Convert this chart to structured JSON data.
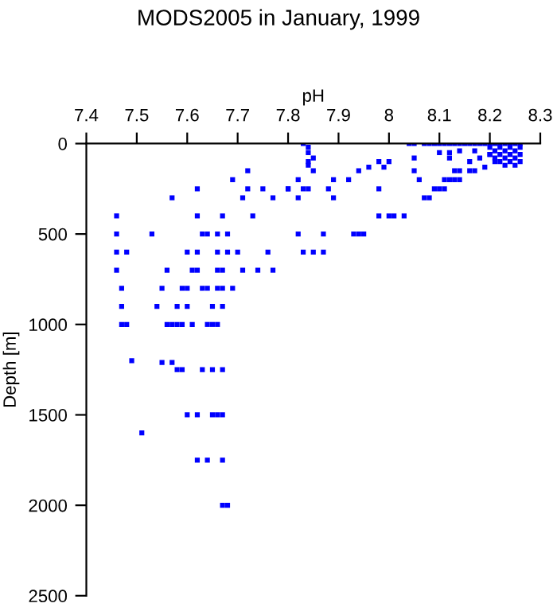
{
  "chart_data": {
    "type": "scatter",
    "title": "MODS2005 in January, 1999",
    "xlabel": "pH",
    "ylabel": "Depth [m]",
    "xlim": [
      7.4,
      8.3
    ],
    "xticks": [
      7.4,
      7.5,
      7.6,
      7.7,
      7.8,
      7.9,
      {
        "value": 8.0,
        "label": "8"
      },
      8.1,
      8.2,
      8.3
    ],
    "ylim": [
      2500,
      0
    ],
    "yticks": [
      0,
      500,
      1000,
      1500,
      2000,
      2500
    ],
    "grid": false,
    "marker": "square",
    "legend": false,
    "series": [
      {
        "color": "#0000ff",
        "x": [
          7.46,
          7.46,
          7.46,
          7.48,
          7.46,
          7.47,
          7.47,
          7.47,
          7.48,
          7.49,
          7.55,
          7.57,
          7.57,
          7.62,
          7.53,
          7.62,
          7.63,
          7.64,
          7.66,
          7.68,
          7.67,
          7.69,
          7.72,
          7.72,
          7.75,
          7.77,
          7.71,
          7.73,
          7.8,
          7.82,
          7.82,
          7.82,
          7.83,
          7.85,
          7.6,
          7.62,
          7.66,
          7.68,
          7.7,
          7.76,
          7.56,
          7.61,
          7.62,
          7.66,
          7.67,
          7.71,
          7.74,
          7.77,
          7.55,
          7.59,
          7.6,
          7.63,
          7.64,
          7.66,
          7.67,
          7.69,
          7.54,
          7.58,
          7.6,
          7.65,
          7.67,
          7.56,
          7.57,
          7.58,
          7.59,
          7.61,
          7.64,
          7.65,
          7.66,
          7.58,
          7.59,
          7.63,
          7.65,
          7.67,
          7.51,
          7.6,
          7.62,
          7.65,
          7.66,
          7.67,
          7.62,
          7.64,
          7.67,
          7.67,
          7.68,
          7.83,
          7.84,
          7.84,
          7.85,
          7.84,
          7.84,
          7.85,
          7.8,
          7.83,
          7.84,
          7.88,
          7.89,
          7.89,
          7.87,
          7.87,
          7.92,
          7.93,
          7.94,
          7.95,
          7.94,
          7.96,
          7.98,
          8.0,
          7.99,
          7.98,
          7.98,
          8.0,
          8.01,
          8.03,
          8.05,
          8.05,
          8.06,
          8.07,
          8.08,
          8.09,
          8.1,
          8.11,
          8.11,
          8.12,
          8.13,
          8.14,
          8.1,
          8.12,
          8.12,
          8.14,
          8.13,
          8.14,
          8.16,
          8.16,
          8.17,
          8.17,
          8.18,
          8.19,
          8.2,
          8.21,
          8.04,
          8.05,
          8.07,
          8.08,
          8.09,
          8.1,
          8.11,
          8.12,
          8.13,
          8.14,
          8.15,
          8.16,
          8.17,
          8.18,
          8.19,
          8.2,
          8.21,
          8.22,
          8.23,
          8.24,
          8.25,
          8.26,
          8.2,
          8.22,
          8.24,
          8.26,
          8.21,
          8.23,
          8.25,
          8.2,
          8.22,
          8.24,
          8.26,
          8.21,
          8.23,
          8.25,
          8.22,
          8.24,
          8.26,
          8.23,
          8.25
        ],
        "values": [
          400,
          500,
          600,
          600,
          700,
          800,
          900,
          1000,
          1000,
          1200,
          1210,
          1210,
          300,
          250,
          500,
          400,
          500,
          500,
          500,
          500,
          400,
          200,
          150,
          250,
          250,
          300,
          300,
          400,
          250,
          200,
          300,
          500,
          600,
          600,
          600,
          600,
          600,
          600,
          600,
          600,
          700,
          700,
          700,
          700,
          700,
          700,
          700,
          700,
          800,
          800,
          800,
          800,
          800,
          800,
          800,
          800,
          900,
          900,
          900,
          900,
          900,
          1000,
          1000,
          1000,
          1000,
          1000,
          1000,
          1000,
          1000,
          1250,
          1250,
          1250,
          1250,
          1250,
          1600,
          1500,
          1500,
          1500,
          1500,
          1500,
          1750,
          1750,
          1750,
          2000,
          2000,
          0,
          20,
          50,
          80,
          100,
          120,
          150,
          250,
          250,
          250,
          250,
          200,
          300,
          500,
          600,
          200,
          500,
          500,
          500,
          150,
          130,
          100,
          100,
          130,
          250,
          400,
          400,
          400,
          400,
          80,
          150,
          200,
          300,
          300,
          250,
          250,
          250,
          200,
          200,
          200,
          200,
          50,
          50,
          80,
          40,
          150,
          150,
          100,
          150,
          150,
          40,
          80,
          130,
          60,
          100,
          0,
          0,
          0,
          0,
          0,
          0,
          0,
          0,
          0,
          0,
          0,
          0,
          0,
          0,
          0,
          0,
          0,
          0,
          0,
          0,
          0,
          0,
          20,
          20,
          20,
          20,
          40,
          40,
          40,
          60,
          60,
          60,
          60,
          80,
          80,
          80,
          100,
          100,
          100,
          120,
          120
        ]
      }
    ]
  }
}
